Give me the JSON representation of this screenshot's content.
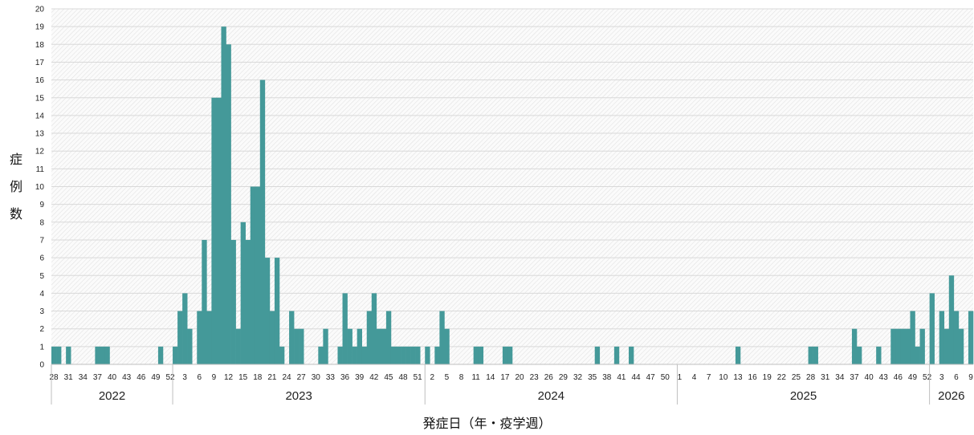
{
  "chart_data": {
    "type": "bar",
    "ylabel": "症例数",
    "xlabel": "発症日（年・疫学週）",
    "ylim": [
      0,
      20
    ],
    "y_ticks": [
      0,
      1,
      2,
      3,
      4,
      5,
      6,
      7,
      8,
      9,
      10,
      11,
      12,
      13,
      14,
      15,
      16,
      17,
      18,
      19,
      20
    ],
    "grid": true,
    "bar_color": "#449999",
    "years": [
      {
        "label": "2022",
        "start_week": 28,
        "end_week": 52
      },
      {
        "label": "2023",
        "start_week": 1,
        "end_week": 52
      },
      {
        "label": "2024",
        "start_week": 1,
        "end_week": 52
      },
      {
        "label": "2025",
        "start_week": 1,
        "end_week": 52
      },
      {
        "label": "2026",
        "start_week": 1,
        "end_week": 9
      }
    ],
    "x_tick_labels": [
      {
        "year": "2022",
        "weeks": [
          28,
          31,
          34,
          37,
          40,
          43,
          46,
          49,
          52
        ]
      },
      {
        "year": "2023",
        "weeks": [
          3,
          6,
          9,
          12,
          15,
          18,
          21,
          24,
          27,
          30,
          33,
          36,
          39,
          42,
          45,
          48,
          51
        ]
      },
      {
        "year": "2024",
        "weeks": [
          2,
          5,
          8,
          11,
          14,
          17,
          20,
          23,
          26,
          29,
          32,
          35,
          38,
          41,
          44,
          47,
          50
        ]
      },
      {
        "year": "2025",
        "weeks": [
          1,
          4,
          7,
          10,
          13,
          16,
          19,
          22,
          25,
          28,
          31,
          34,
          37,
          40,
          43,
          46,
          49,
          52
        ]
      },
      {
        "year": "2026",
        "weeks": [
          3,
          6,
          9
        ]
      }
    ],
    "values": {
      "2022": [
        1,
        1,
        0,
        1,
        0,
        0,
        0,
        0,
        0,
        1,
        1,
        1,
        0,
        0,
        0,
        0,
        0,
        0,
        0,
        0,
        0,
        0,
        1,
        0,
        0
      ],
      "2023": [
        1,
        3,
        4,
        2,
        0,
        3,
        7,
        3,
        15,
        15,
        19,
        18,
        7,
        2,
        8,
        7,
        10,
        10,
        16,
        6,
        3,
        6,
        1,
        0,
        3,
        2,
        2,
        0,
        0,
        0,
        1,
        2,
        0,
        0,
        1,
        4,
        2,
        1,
        2,
        1,
        3,
        4,
        2,
        2,
        3,
        1,
        1,
        1,
        1,
        1,
        1,
        0
      ],
      "2024": [
        1,
        0,
        1,
        3,
        2,
        0,
        0,
        0,
        0,
        0,
        1,
        1,
        0,
        0,
        0,
        0,
        1,
        1,
        0,
        0,
        0,
        0,
        0,
        0,
        0,
        0,
        0,
        0,
        0,
        0,
        0,
        0,
        0,
        0,
        0,
        1,
        0,
        0,
        0,
        1,
        0,
        0,
        1,
        0,
        0,
        0,
        0,
        0,
        0,
        0,
        0,
        0
      ],
      "2025": [
        0,
        0,
        0,
        0,
        0,
        0,
        0,
        0,
        0,
        0,
        0,
        0,
        1,
        0,
        0,
        0,
        0,
        0,
        0,
        0,
        0,
        0,
        0,
        0,
        0,
        0,
        0,
        1,
        1,
        0,
        0,
        0,
        0,
        0,
        0,
        0,
        2,
        1,
        0,
        0,
        0,
        1,
        0,
        0,
        2,
        2,
        2,
        2,
        3,
        1,
        2,
        0
      ],
      "2026": [
        4,
        0,
        3,
        2,
        5,
        3,
        2,
        0,
        3
      ]
    }
  }
}
